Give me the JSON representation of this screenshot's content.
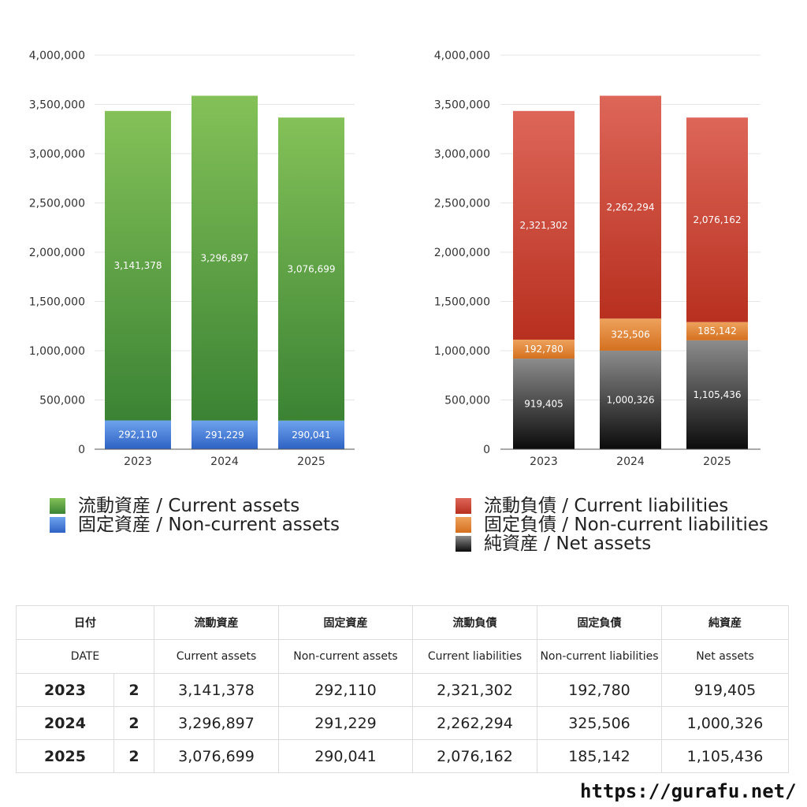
{
  "chart_data": [
    {
      "type": "bar",
      "stacked": true,
      "categories": [
        "2023",
        "2024",
        "2025"
      ],
      "ylim": [
        0,
        4000000
      ],
      "yticks": [
        "0",
        "500,000",
        "1,000,000",
        "1,500,000",
        "2,000,000",
        "2,500,000",
        "3,000,000",
        "3,500,000",
        "4,000,000"
      ],
      "grid": true,
      "series": [
        {
          "name": "固定資産 / Non-current assets",
          "values": [
            292110,
            291229,
            290041
          ],
          "labels": [
            "292,110",
            "291,229",
            "290,041"
          ],
          "color": "#3f78d8"
        },
        {
          "name": "流動資産 / Current assets",
          "values": [
            3141378,
            3296897,
            3076699
          ],
          "labels": [
            "3,141,378",
            "3,296,897",
            "3,076,699"
          ],
          "color": "#5aa33d"
        }
      ]
    },
    {
      "type": "bar",
      "stacked": true,
      "categories": [
        "2023",
        "2024",
        "2025"
      ],
      "ylim": [
        0,
        4000000
      ],
      "yticks": [
        "0",
        "500,000",
        "1,000,000",
        "1,500,000",
        "2,000,000",
        "2,500,000",
        "3,000,000",
        "3,500,000",
        "4,000,000"
      ],
      "grid": true,
      "series": [
        {
          "name": "純資産 / Net assets",
          "values": [
            919405,
            1000326,
            1105436
          ],
          "labels": [
            "919,405",
            "1,000,326",
            "1,105,436"
          ],
          "color": "#333333"
        },
        {
          "name": "固定負債 / Non-current liabilities",
          "values": [
            192780,
            325506,
            185142
          ],
          "labels": [
            "192,780",
            "325,506",
            "185,142"
          ],
          "color": "#e07f2c"
        },
        {
          "name": "流動負債 / Current liabilities",
          "values": [
            2321302,
            2262294,
            2076162
          ],
          "labels": [
            "2,321,302",
            "2,262,294",
            "2,076,162"
          ],
          "color": "#c8402f"
        }
      ]
    }
  ],
  "legend_left": [
    {
      "label": "流動資産 / Current assets",
      "color": "#5aa33d"
    },
    {
      "label": "固定資産 / Non-current assets",
      "color": "#3f78d8"
    }
  ],
  "legend_right": [
    {
      "label": "流動負債 / Current liabilities",
      "color": "#c8402f"
    },
    {
      "label": "固定負債 / Non-current liabilities",
      "color": "#e07f2c"
    },
    {
      "label": "純資産 / Net assets",
      "color": "#222222"
    }
  ],
  "table": {
    "header_jp": [
      "日付",
      "",
      "流動資産",
      "固定資産",
      "流動負債",
      "固定負債",
      "純資産"
    ],
    "header_en": [
      "DATE",
      "",
      "Current assets",
      "Non-current assets",
      "Current liabilities",
      "Non-current liabilities",
      "Net assets"
    ],
    "rows": [
      [
        "2023",
        "2",
        "3,141,378",
        "292,110",
        "2,321,302",
        "192,780",
        "919,405"
      ],
      [
        "2024",
        "2",
        "3,296,897",
        "291,229",
        "2,262,294",
        "325,506",
        "1,000,326"
      ],
      [
        "2025",
        "2",
        "3,076,699",
        "290,041",
        "2,076,162",
        "185,142",
        "1,105,436"
      ]
    ]
  },
  "site_url": "https://gurafu.net/"
}
